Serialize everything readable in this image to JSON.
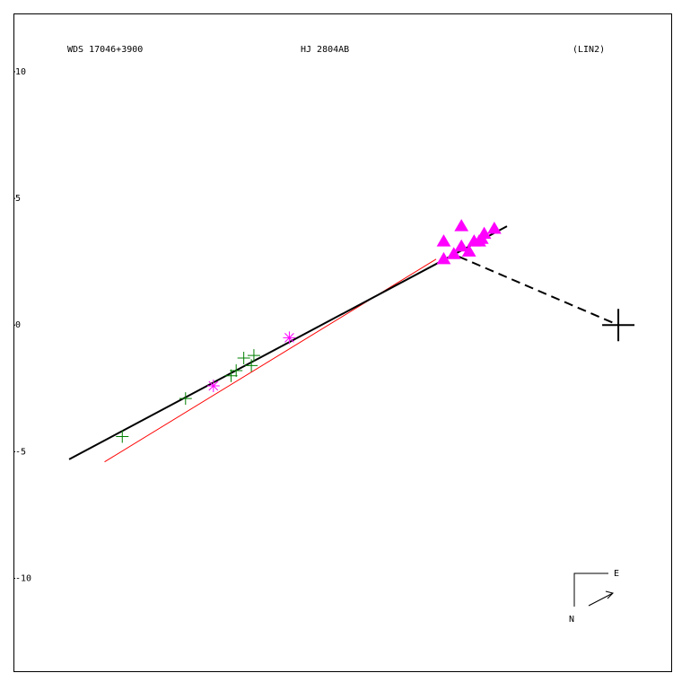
{
  "chart_data": {
    "type": "scatter",
    "titles": [
      "WDS 17046+3900",
      "HJ 2804AB",
      "(LIN2)"
    ],
    "ylim": [
      12.3,
      -13.7
    ],
    "xlim": [
      -23.9,
      2.16
    ],
    "yticks": [
      10,
      5,
      0,
      -5,
      -10
    ],
    "compass": [
      "E",
      "N"
    ],
    "lines": [
      {
        "color": "#ff0000",
        "dash": false,
        "x": [
          -20.3,
          -7.2
        ],
        "y": [
          -5.4,
          2.6
        ]
      },
      {
        "color": "#000000",
        "dash": false,
        "x": [
          -21.7,
          -4.4
        ],
        "y": [
          -5.3,
          3.9
        ]
      },
      {
        "color": "#000000",
        "dash": true,
        "x": [
          -6.3,
          0
        ],
        "y": [
          2.7,
          0
        ]
      }
    ],
    "series": [
      {
        "marker": "plus",
        "color": "#008000",
        "x": [
          -19.6,
          -17.1,
          -15.3,
          -15.1,
          -14.8,
          -14.5,
          -14.4
        ],
        "y": [
          -4.4,
          -2.9,
          -2.0,
          -1.8,
          -1.3,
          -1.6,
          -1.2
        ]
      },
      {
        "marker": "asterisk",
        "color": "#ff00ff",
        "x": [
          -16.0,
          -13.0
        ],
        "y": [
          -2.4,
          -0.5
        ]
      },
      {
        "marker": "triangle",
        "color": "#ff00ff",
        "x": [
          -6.9,
          -6.9,
          -6.5,
          -6.2,
          -6.2,
          -5.9,
          -5.7,
          -5.5,
          -5.4,
          -5.3,
          -4.9
        ],
        "y": [
          2.6,
          3.3,
          2.8,
          3.9,
          3.1,
          2.9,
          3.3,
          3.3,
          3.4,
          3.6,
          3.8
        ]
      },
      {
        "marker": "big-plus",
        "color": "#000000",
        "x": [
          0
        ],
        "y": [
          0
        ]
      }
    ]
  }
}
